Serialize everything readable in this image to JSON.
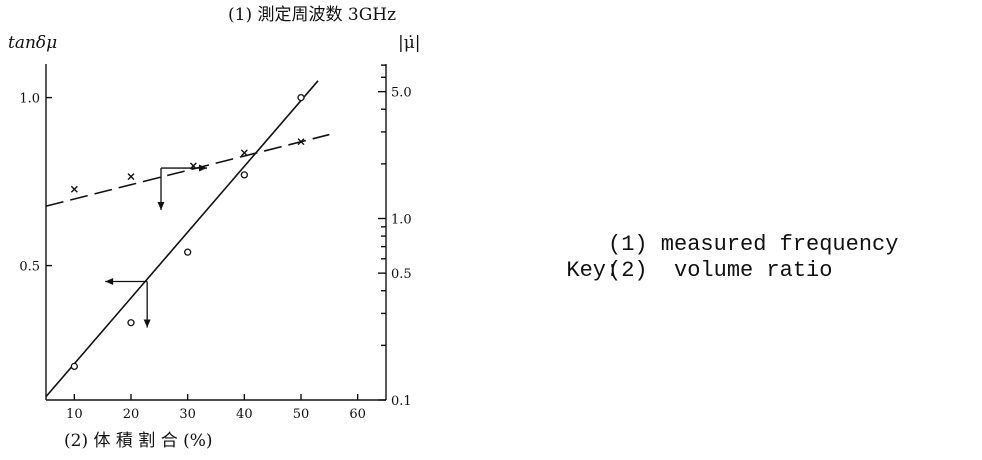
{
  "chart_data": {
    "type": "line",
    "title": "(1) 測定周波数 3GHz",
    "xlabel": "(2) 体 積 割 合 (%)",
    "ylabel_left": "tanδμ",
    "ylabel_right": "|μ̇|",
    "xlim": [
      5,
      65
    ],
    "ylim_left": [
      0.1,
      1.1
    ],
    "ylim_right": [
      0.1,
      7.1
    ],
    "y_right_scale": "log",
    "x_ticks": [
      10,
      20,
      30,
      40,
      50,
      60
    ],
    "y_left_ticks": [
      0.5,
      1.0
    ],
    "y_right_ticks": [
      0.1,
      0.5,
      1.0,
      5.0
    ],
    "grid": false,
    "series": [
      {
        "axis": "right",
        "marker": "x",
        "style": "dashed",
        "x": [
          10,
          20,
          31,
          40,
          50
        ],
        "y": [
          1.45,
          1.7,
          1.95,
          2.3,
          2.65
        ],
        "fit": {
          "x": [
            5,
            55
          ],
          "y": [
            1.17,
            2.9
          ]
        }
      },
      {
        "axis": "left",
        "marker": "o",
        "style": "solid",
        "x": [
          10,
          20,
          30,
          40,
          50
        ],
        "y": [
          0.2,
          0.33,
          0.54,
          0.77,
          1.0
        ],
        "fit": {
          "x": [
            5,
            53
          ],
          "y": [
            0.11,
            1.05
          ]
        }
      }
    ],
    "axis_arrows": [
      {
        "series": "x",
        "points_to": "right"
      },
      {
        "series": "o",
        "points_to": "left"
      }
    ]
  },
  "key": {
    "label": "Key:",
    "lines": [
      "(1) measured frequency",
      "(2)  volume ratio"
    ]
  }
}
